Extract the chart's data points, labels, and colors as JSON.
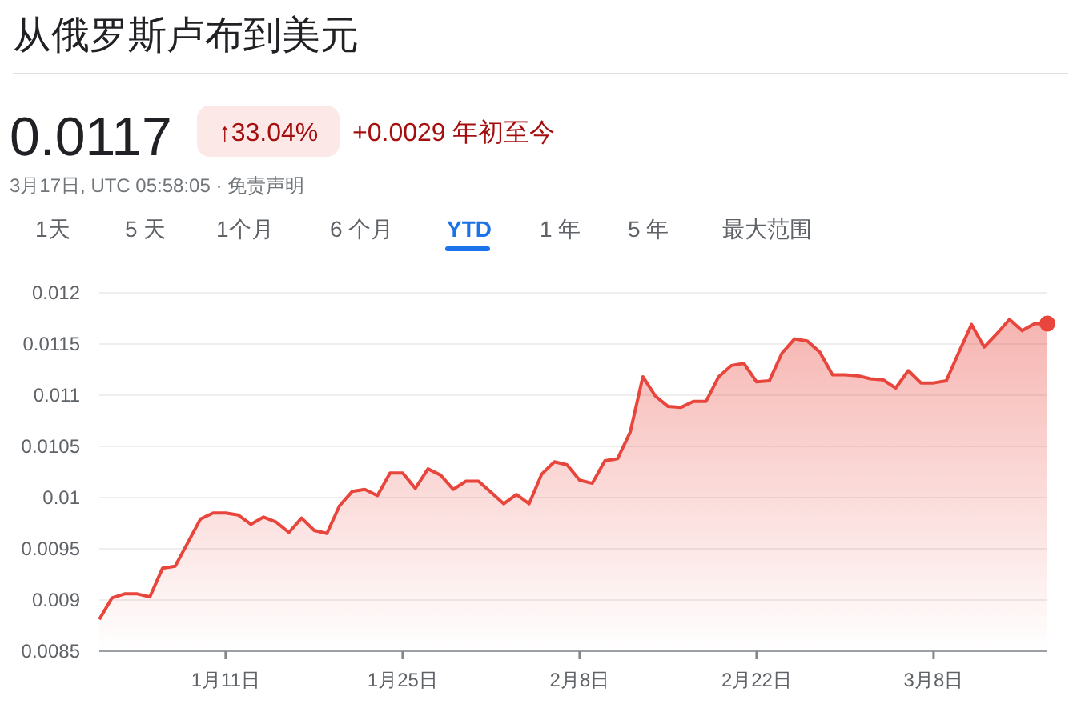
{
  "chart_data": {
    "type": "area",
    "title": "从俄罗斯卢布到美元",
    "annotations": [
      "0.0117",
      "↑33.04%",
      "+0.0029 年初至今",
      "3月17日, UTC 05:58:05 · 免责声明",
      "1天",
      "5 天",
      "1个月",
      "6 个月",
      "YTD",
      "1 年",
      "5 年",
      "最大范围"
    ],
    "x": [
      "--01-01",
      "--01-02",
      "--01-03",
      "--01-04",
      "--01-05",
      "--01-06",
      "--01-07",
      "--01-08",
      "--01-09",
      "--01-10",
      "--01-11",
      "--01-12",
      "--01-13",
      "--01-14",
      "--01-15",
      "--01-16",
      "--01-17",
      "--01-18",
      "--01-19",
      "--01-20",
      "--01-21",
      "--01-22",
      "--01-23",
      "--01-24",
      "--01-25",
      "--01-26",
      "--01-27",
      "--01-28",
      "--01-29",
      "--01-30",
      "--01-31",
      "--02-01",
      "--02-02",
      "--02-03",
      "--02-04",
      "--02-05",
      "--02-06",
      "--02-07",
      "--02-08",
      "--02-09",
      "--02-10",
      "--02-11",
      "--02-12",
      "--02-13",
      "--02-14",
      "--02-15",
      "--02-16",
      "--02-17",
      "--02-18",
      "--02-19",
      "--02-20",
      "--02-21",
      "--02-22",
      "--02-23",
      "--02-24",
      "--02-25",
      "--02-26",
      "--02-27",
      "--02-28",
      "--03-01",
      "--03-02",
      "--03-03",
      "--03-04",
      "--03-05",
      "--03-06",
      "--03-07",
      "--03-08",
      "--03-09",
      "--03-10",
      "--03-11",
      "--03-12",
      "--03-13",
      "--03-14",
      "--03-15",
      "--03-16",
      "--03-17"
    ],
    "series": [
      {
        "color": "#e8453c",
        "values": [
          0.00881,
          0.00902,
          0.00906,
          0.00906,
          0.00903,
          0.00931,
          0.00933,
          0.00956,
          0.00979,
          0.00985,
          0.00985,
          0.00983,
          0.00974,
          0.00981,
          0.00976,
          0.00966,
          0.0098,
          0.00968,
          0.00965,
          0.00992,
          0.01006,
          0.01008,
          0.01002,
          0.01024,
          0.01024,
          0.01009,
          0.01028,
          0.01022,
          0.01008,
          0.01016,
          0.01016,
          0.01005,
          0.00994,
          0.01003,
          0.00994,
          0.01023,
          0.01035,
          0.01032,
          0.01017,
          0.01014,
          0.01036,
          0.01038,
          0.01064,
          0.01118,
          0.01099,
          0.01089,
          0.01088,
          0.01094,
          0.01094,
          0.01118,
          0.01129,
          0.01131,
          0.01113,
          0.01114,
          0.01141,
          0.01155,
          0.01153,
          0.01142,
          0.0112,
          0.0112,
          0.01119,
          0.01116,
          0.01115,
          0.01107,
          0.01124,
          0.01112,
          0.01112,
          0.01114,
          0.01142,
          0.01169,
          0.01147,
          0.0116,
          0.01174,
          0.01163,
          0.0117,
          0.0117
        ]
      }
    ],
    "xlim": [
      "--01-01",
      "--03-17"
    ],
    "xticks": [
      {
        "value": "--01-11",
        "label": "1月11日"
      },
      {
        "value": "--01-25",
        "label": "1月25日"
      },
      {
        "value": "--02-08",
        "label": "2月8日"
      },
      {
        "value": "--02-22",
        "label": "2月22日"
      },
      {
        "value": "--03-08",
        "label": "3月8日"
      }
    ],
    "ylim": [
      0.0085,
      0.012
    ],
    "yticks": [
      0.0085,
      0.009,
      0.0095,
      0.01,
      0.0105,
      0.011,
      0.0115,
      0.012
    ],
    "grid": "y"
  }
}
